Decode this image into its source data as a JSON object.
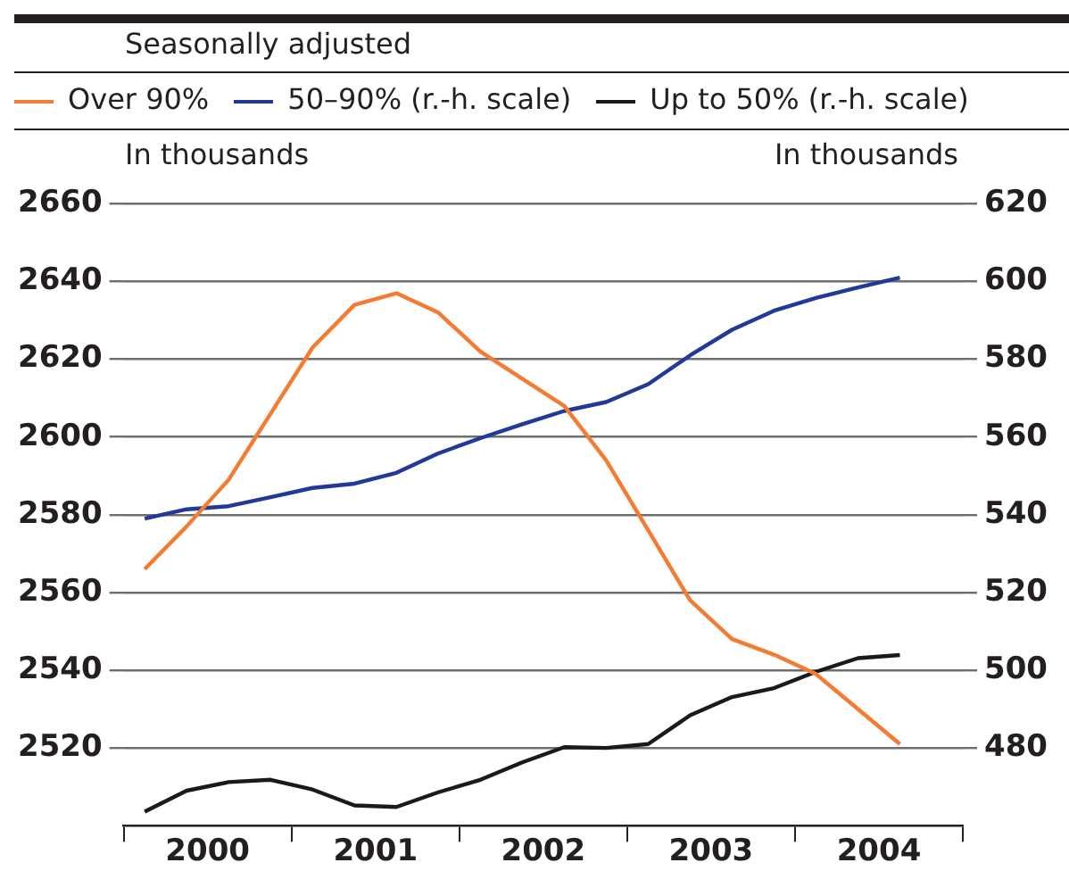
{
  "chart_data": {
    "type": "line",
    "subtitle": "Seasonally adjusted",
    "ylabel": "In thousands",
    "y2label": "In thousands",
    "x": [
      2000.125,
      2000.375,
      2000.625,
      2000.875,
      2001.125,
      2001.375,
      2001.625,
      2001.875,
      2002.125,
      2002.375,
      2002.625,
      2002.875,
      2003.125,
      2003.375,
      2003.625,
      2003.875,
      2004.125,
      2004.375,
      2004.625
    ],
    "xlim": [
      2000,
      2005
    ],
    "xticks": [
      {
        "value": 2000,
        "label": null
      },
      {
        "value": 2000.5,
        "label": "2000"
      },
      {
        "value": 2001,
        "label": null
      },
      {
        "value": 2001.5,
        "label": "2001"
      },
      {
        "value": 2002,
        "label": null
      },
      {
        "value": 2002.5,
        "label": "2002"
      },
      {
        "value": 2003,
        "label": null
      },
      {
        "value": 2003.5,
        "label": "2003"
      },
      {
        "value": 2004,
        "label": null
      },
      {
        "value": 2004.5,
        "label": "2004"
      },
      {
        "value": 2005,
        "label": null
      }
    ],
    "ylim": [
      2500,
      2660
    ],
    "yticks": [
      2520,
      2540,
      2560,
      2580,
      2600,
      2620,
      2640,
      2660
    ],
    "y2lim": [
      460,
      620
    ],
    "y2ticks": [
      480,
      500,
      520,
      540,
      560,
      580,
      600,
      620
    ],
    "series": [
      {
        "name": "Over 90%",
        "color": "#f47b32",
        "values": [
          2566,
          2577,
          2589,
          2606,
          2623,
          2634,
          2637,
          2632,
          2622,
          2615,
          2608,
          2594,
          2576,
          2558,
          2548,
          2544,
          2539,
          2530,
          2521
        ]
      },
      {
        "name": "50–90% (r.-h. scale)",
        "color": "#22399a",
        "axis": "y2",
        "values": [
          539,
          541.4,
          542.2,
          544.5,
          546.9,
          548,
          550.8,
          555.8,
          559.7,
          563.3,
          566.7,
          569,
          573.6,
          581,
          587.6,
          592.5,
          595.8,
          598.5,
          601
        ]
      },
      {
        "name": "Up to 50% (r.-h. scale)",
        "color": "#1a1a1a",
        "axis": "y2",
        "values": [
          463.6,
          469,
          471.2,
          471.8,
          469.3,
          465.2,
          464.8,
          468.6,
          471.8,
          476.3,
          480.2,
          480,
          481,
          488.4,
          493.1,
          495.4,
          499.6,
          503.1,
          503.9
        ]
      }
    ],
    "grid": "y",
    "legend": "top",
    "marker": "none",
    "line_style": "solid"
  }
}
